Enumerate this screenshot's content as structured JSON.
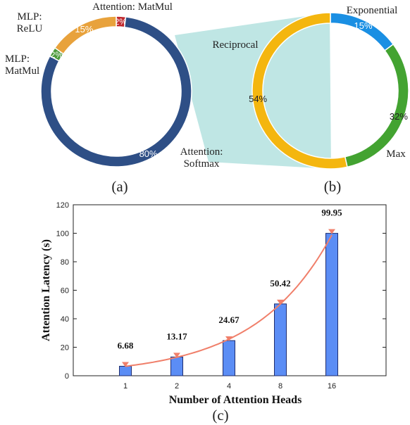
{
  "chart_data": [
    {
      "type": "pie",
      "variant": "donut",
      "caption": "(a)",
      "slices": [
        {
          "label_lines": [
            "Attention: MatMul"
          ],
          "value": 2,
          "value_label": "2%",
          "color": "#c0282d"
        },
        {
          "label_lines": [
            "Attention:",
            "Softmax"
          ],
          "value": 80,
          "value_label": "80%",
          "color": "#2e4f86"
        },
        {
          "label_lines": [
            "MLP:",
            "MatMul"
          ],
          "value": 2,
          "value_label": "2%",
          "color": "#4c9a3a"
        },
        {
          "label_lines": [
            "MLP:",
            "ReLU"
          ],
          "value": 15,
          "value_label": "15%",
          "color": "#e8a23c"
        }
      ]
    },
    {
      "type": "pie",
      "variant": "donut",
      "caption": "(b)",
      "slices": [
        {
          "label_lines": [
            "Exponential"
          ],
          "value": 15,
          "value_label": "15%",
          "color": "#1a8fe3"
        },
        {
          "label_lines": [
            "Max"
          ],
          "value": 32,
          "value_label": "32%",
          "color": "#43a331"
        },
        {
          "label_lines": [
            "Reciprocal"
          ],
          "value": 54,
          "value_label": "54%",
          "color": "#f4b60f"
        }
      ]
    },
    {
      "type": "bar",
      "caption": "(c)",
      "categories": [
        "1",
        "2",
        "4",
        "8",
        "16"
      ],
      "values": [
        6.68,
        13.17,
        24.67,
        50.42,
        99.95
      ],
      "value_labels": [
        "6.68",
        "13.17",
        "24.67",
        "50.42",
        "99.95"
      ],
      "xlabel": "Number of Attention Heads",
      "ylabel": "Attention Latency (s)",
      "ylim": [
        0,
        120
      ],
      "yticks": [
        0,
        20,
        40,
        60,
        80,
        100,
        120
      ],
      "bar_color": "#5b8df5",
      "trend_color": "#f07f6a",
      "grid": false
    }
  ],
  "colors": {
    "connector": "#bfe6e4"
  }
}
